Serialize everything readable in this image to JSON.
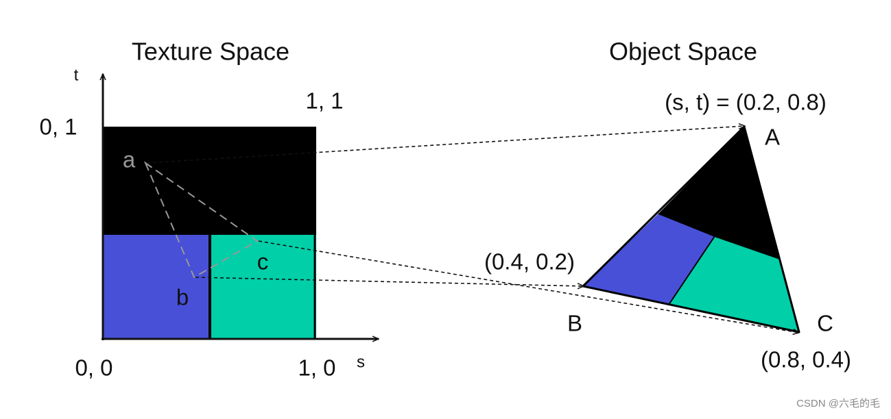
{
  "texture_space": {
    "title": "Texture Space",
    "axis_t": "t",
    "axis_s": "s",
    "corners": [
      "0, 1",
      "1, 1",
      "0, 0",
      "1, 0"
    ],
    "points": [
      "a",
      "b",
      "c"
    ]
  },
  "object_space": {
    "title": "Object Space",
    "vertices": [
      "A",
      "B",
      "C"
    ],
    "coordinates": [
      "(s, t) = (0.2, 0.8)",
      "(0.4, 0.2)",
      "(0.8, 0.4)"
    ]
  },
  "watermark": "CSDN @六毛的毛"
}
